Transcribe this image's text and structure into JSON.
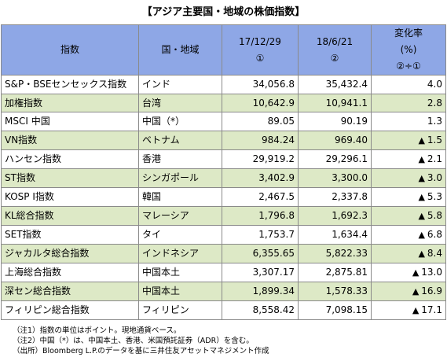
{
  "title": "【アジア主要国・地域の株価指数】",
  "header": {
    "col_index": "指数",
    "col_region": "国・地域",
    "col_a_date": "17/12/29",
    "col_a_mark": "①",
    "col_b_date": "18/6/21",
    "col_b_mark": "②",
    "col_change_l1": "変化率",
    "col_change_l2": "(%)",
    "col_change_l3": "②÷①"
  },
  "rows": [
    {
      "index": "S&P・BSEセンセックス指数",
      "region": "インド",
      "v1": "34,056.8",
      "v2": "35,432.4",
      "change": "4.0",
      "neg": false
    },
    {
      "index": "加権指数",
      "region": "台湾",
      "v1": "10,642.9",
      "v2": "10,941.1",
      "change": "2.8",
      "neg": false
    },
    {
      "index": "MSCI 中国",
      "region": "中国（*）",
      "v1": "89.05",
      "v2": "90.19",
      "change": "1.3",
      "neg": false
    },
    {
      "index": "VN指数",
      "region": "ベトナム",
      "v1": "984.24",
      "v2": "969.40",
      "change": "1.5",
      "neg": true
    },
    {
      "index": "ハンセン指数",
      "region": "香港",
      "v1": "29,919.2",
      "v2": "29,296.1",
      "change": "2.1",
      "neg": true
    },
    {
      "index": "ST指数",
      "region": "シンガポール",
      "v1": "3,402.9",
      "v2": "3,300.0",
      "change": "3.0",
      "neg": true
    },
    {
      "index": "KOSP I指数",
      "region": "韓国",
      "v1": "2,467.5",
      "v2": "2,337.8",
      "change": "5.3",
      "neg": true
    },
    {
      "index": "KL総合指数",
      "region": "マレーシア",
      "v1": "1,796.8",
      "v2": "1,692.3",
      "change": "5.8",
      "neg": true
    },
    {
      "index": "SET指数",
      "region": "タイ",
      "v1": "1,753.7",
      "v2": "1,634.4",
      "change": "6.8",
      "neg": true
    },
    {
      "index": "ジャカルタ総合指数",
      "region": "インドネシア",
      "v1": "6,355.65",
      "v2": "5,822.33",
      "change": "8.4",
      "neg": true
    },
    {
      "index": "上海総合指数",
      "region": "中国本土",
      "v1": "3,307.17",
      "v2": "2,875.81",
      "change": "13.0",
      "neg": true
    },
    {
      "index": "深セン総合指数",
      "region": "中国本土",
      "v1": "1,899.34",
      "v2": "1,578.33",
      "change": "16.9",
      "neg": true
    },
    {
      "index": "フィリピン総合指数",
      "region": "フィリピン",
      "v1": "8,558.42",
      "v2": "7,098.15",
      "change": "17.1",
      "neg": true
    }
  ],
  "negative_marker": "▲",
  "notes": [
    "（注1）指数の単位はポイント。現地通貨ベース。",
    "（注2）中国（*）は、中国本土、香港、米国預託証券（ADR）を含む。",
    "（出所）Bloomberg L.P.のデータを基に三井住友アセットマネジメント作成"
  ],
  "colors": {
    "header_bg": "#8ea7e6",
    "stripe_bg": "#dde9c6",
    "border": "#8a8a8a"
  }
}
